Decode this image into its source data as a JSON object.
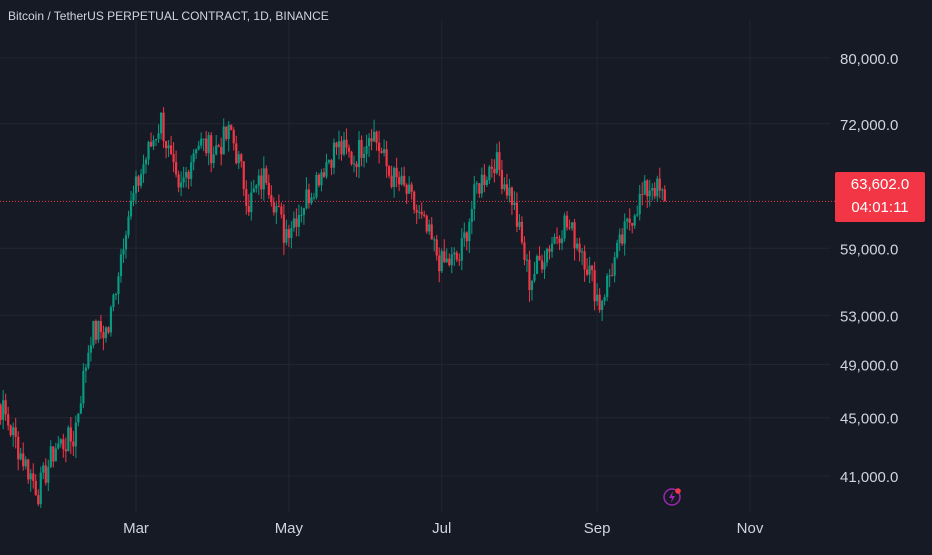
{
  "chart_data": {
    "type": "candlestick",
    "title": "Bitcoin / TetherUS PERPETUAL CONTRACT, 1D, BINANCE",
    "x_tick_labels": [
      "Mar",
      "May",
      "Jul",
      "Sep",
      "Nov"
    ],
    "y_tick_labels": [
      "80,000.0",
      "72,000.0",
      "59,000.0",
      "53,000.0",
      "49,000.0",
      "45,000.0",
      "41,000.0"
    ],
    "y_ticks": [
      80000,
      72000,
      59000,
      53000,
      49000,
      45000,
      41000
    ],
    "y_scale": "log",
    "y_range": [
      38700,
      85000
    ],
    "last_price": 63602,
    "last_price_label": "63,602.0",
    "countdown": "04:01:11",
    "grid": true,
    "colors": {
      "background": "#161a25",
      "up": "#089981",
      "down": "#f23645",
      "grid": "#232632",
      "text": "#d1d4dc"
    },
    "price_path": [
      {
        "date": "2024-01-01",
        "close": 47000
      },
      {
        "date": "2024-01-08",
        "close": 45500
      },
      {
        "date": "2024-01-15",
        "close": 42500
      },
      {
        "date": "2024-01-22",
        "close": 40000
      },
      {
        "date": "2024-01-29",
        "close": 43000
      },
      {
        "date": "2024-02-05",
        "close": 43500
      },
      {
        "date": "2024-02-12",
        "close": 51500
      },
      {
        "date": "2024-02-19",
        "close": 51800
      },
      {
        "date": "2024-02-26",
        "close": 61500
      },
      {
        "date": "2024-03-04",
        "close": 67500
      },
      {
        "date": "2024-03-11",
        "close": 72500
      },
      {
        "date": "2024-03-18",
        "close": 64000
      },
      {
        "date": "2024-03-25",
        "close": 70000
      },
      {
        "date": "2024-04-01",
        "close": 69000
      },
      {
        "date": "2024-04-08",
        "close": 71000
      },
      {
        "date": "2024-04-15",
        "close": 63500
      },
      {
        "date": "2024-04-22",
        "close": 66500
      },
      {
        "date": "2024-04-29",
        "close": 60500
      },
      {
        "date": "2024-05-06",
        "close": 63000
      },
      {
        "date": "2024-05-13",
        "close": 66500
      },
      {
        "date": "2024-05-20",
        "close": 69500
      },
      {
        "date": "2024-05-27",
        "close": 68000
      },
      {
        "date": "2024-06-03",
        "close": 71500
      },
      {
        "date": "2024-06-10",
        "close": 66500
      },
      {
        "date": "2024-06-17",
        "close": 64500
      },
      {
        "date": "2024-06-24",
        "close": 61000
      },
      {
        "date": "2024-07-01",
        "close": 57500
      },
      {
        "date": "2024-07-08",
        "close": 58000
      },
      {
        "date": "2024-07-15",
        "close": 65000
      },
      {
        "date": "2024-07-22",
        "close": 68000
      },
      {
        "date": "2024-07-29",
        "close": 64000
      },
      {
        "date": "2024-08-05",
        "close": 56000
      },
      {
        "date": "2024-08-12",
        "close": 59000
      },
      {
        "date": "2024-08-19",
        "close": 61500
      },
      {
        "date": "2024-08-26",
        "close": 59000
      },
      {
        "date": "2024-09-02",
        "close": 54000
      },
      {
        "date": "2024-09-09",
        "close": 58500
      },
      {
        "date": "2024-09-16",
        "close": 63000
      },
      {
        "date": "2024-09-23",
        "close": 65500
      },
      {
        "date": "2024-09-28",
        "close": 63602
      }
    ]
  }
}
